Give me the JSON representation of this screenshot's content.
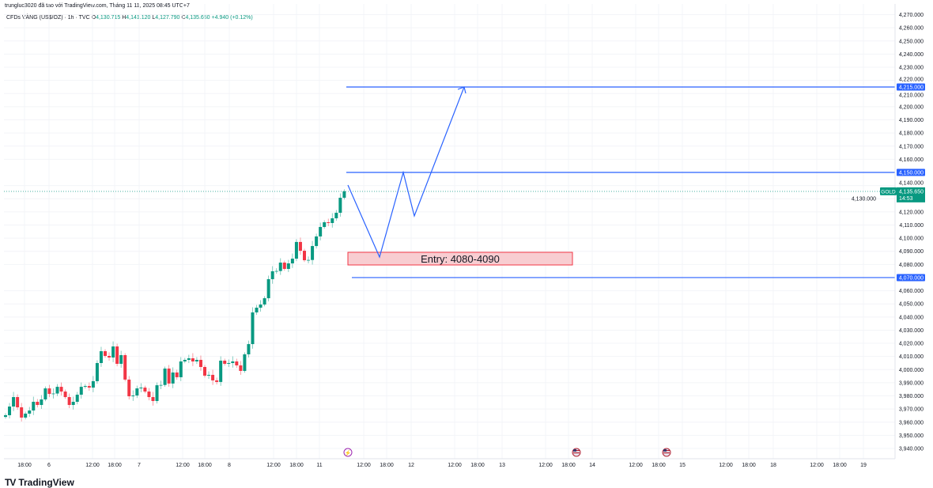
{
  "header": {
    "attribution": "trungluc3020 đã tạo với TradingView.com, Tháng 11 11, 2025 08:45 UTC+7",
    "symbol": "CFDs VÀNG (US$/OZ) · 1h · TVC",
    "open_label": "O",
    "open": "4,130.715",
    "high_label": "H",
    "high": "4,141.120",
    "low_label": "L",
    "low": "4,127.790",
    "close_label": "C",
    "close": "4,135.650",
    "change": "+4.940 (+0.12%)"
  },
  "chart_data": {
    "type": "candlestick",
    "symbol": "GOLD",
    "ylim": [
      3935,
      4275
    ],
    "y_ticks": [
      4270,
      4260,
      4250,
      4240,
      4230,
      4220,
      4210,
      4200,
      4190,
      4180,
      4170,
      4160,
      4140,
      4130,
      4120,
      4110,
      4100,
      4090,
      4080,
      4060,
      4050,
      4040,
      4030,
      4020,
      4010,
      4000,
      3990,
      3980,
      3970,
      3960,
      3950,
      3940
    ],
    "x_tick_labels": [
      "18:00",
      "6",
      "12:00",
      "18:00",
      "7",
      "12:00",
      "18:00",
      "8",
      "12:00",
      "18:00",
      "11",
      "12:00",
      "18:00",
      "12",
      "12:00",
      "18:00",
      "13",
      "12:00",
      "18:00",
      "14",
      "12:00",
      "18:00",
      "15",
      "12:00",
      "18:00",
      "18",
      "12:00",
      "18:00",
      "19"
    ],
    "first_open": 3964.0,
    "closes": [
      3965.3,
      3971.9,
      3979.1,
      3971.3,
      3963.5,
      3966.5,
      3968.9,
      3975.5,
      3973.1,
      3977.3,
      3985.7,
      3981.5,
      3981.8,
      3986.9,
      3983.3,
      3979.1,
      3973.1,
      3975.5,
      3980.9,
      3986.9,
      3987.5,
      3986.3,
      3991.2,
      4005.0,
      4014.0,
      4010.4,
      4009.2,
      4017.6,
      4004.4,
      4011.0,
      3992.4,
      3979.7,
      3980.3,
      3985.7,
      3986.3,
      3983.3,
      3979.1,
      3976.1,
      3988.1,
      3988.3,
      4000.8,
      3989.4,
      3997.8,
      3994.2,
      4006.2,
      4007.4,
      4008.6,
      4006.2,
      4007.4,
      4002.0,
      3995.4,
      3996.0,
      3991.8,
      3990.6,
      4006.8,
      4004.4,
      4005.0,
      4006.2,
      4003.2,
      3999.0,
      4011.6,
      4019.4,
      4043.5,
      4047.1,
      4049.5,
      4054.3,
      4068.8,
      4074.8,
      4075.0,
      4081.4,
      4076.6,
      4080.8,
      4084.4,
      4097.1,
      4090.4,
      4083.2,
      4083.4,
      4094.0,
      4101.3,
      4108.5,
      4112.1,
      4111.5,
      4115.1,
      4119.3,
      4130.715,
      4135.65
    ],
    "colors": {
      "up": "#089981",
      "down": "#f23645",
      "drawing": "#2962ff",
      "last_price": "#089981"
    },
    "levels": [
      {
        "price": 4215,
        "label": "4,215.000"
      },
      {
        "price": 4150,
        "label": "4,150.000"
      },
      {
        "price": 4070,
        "label": "4,070.000"
      }
    ],
    "last_price": {
      "tag": "GOLD",
      "price": 4135.65,
      "label": "4,135.650",
      "countdown": "14:53"
    },
    "annotations": [
      {
        "text": "Entry: 4080-4090",
        "price_range": [
          4080,
          4090
        ]
      }
    ],
    "grid": true
  },
  "footer": {
    "logo_text": "TradingView"
  }
}
